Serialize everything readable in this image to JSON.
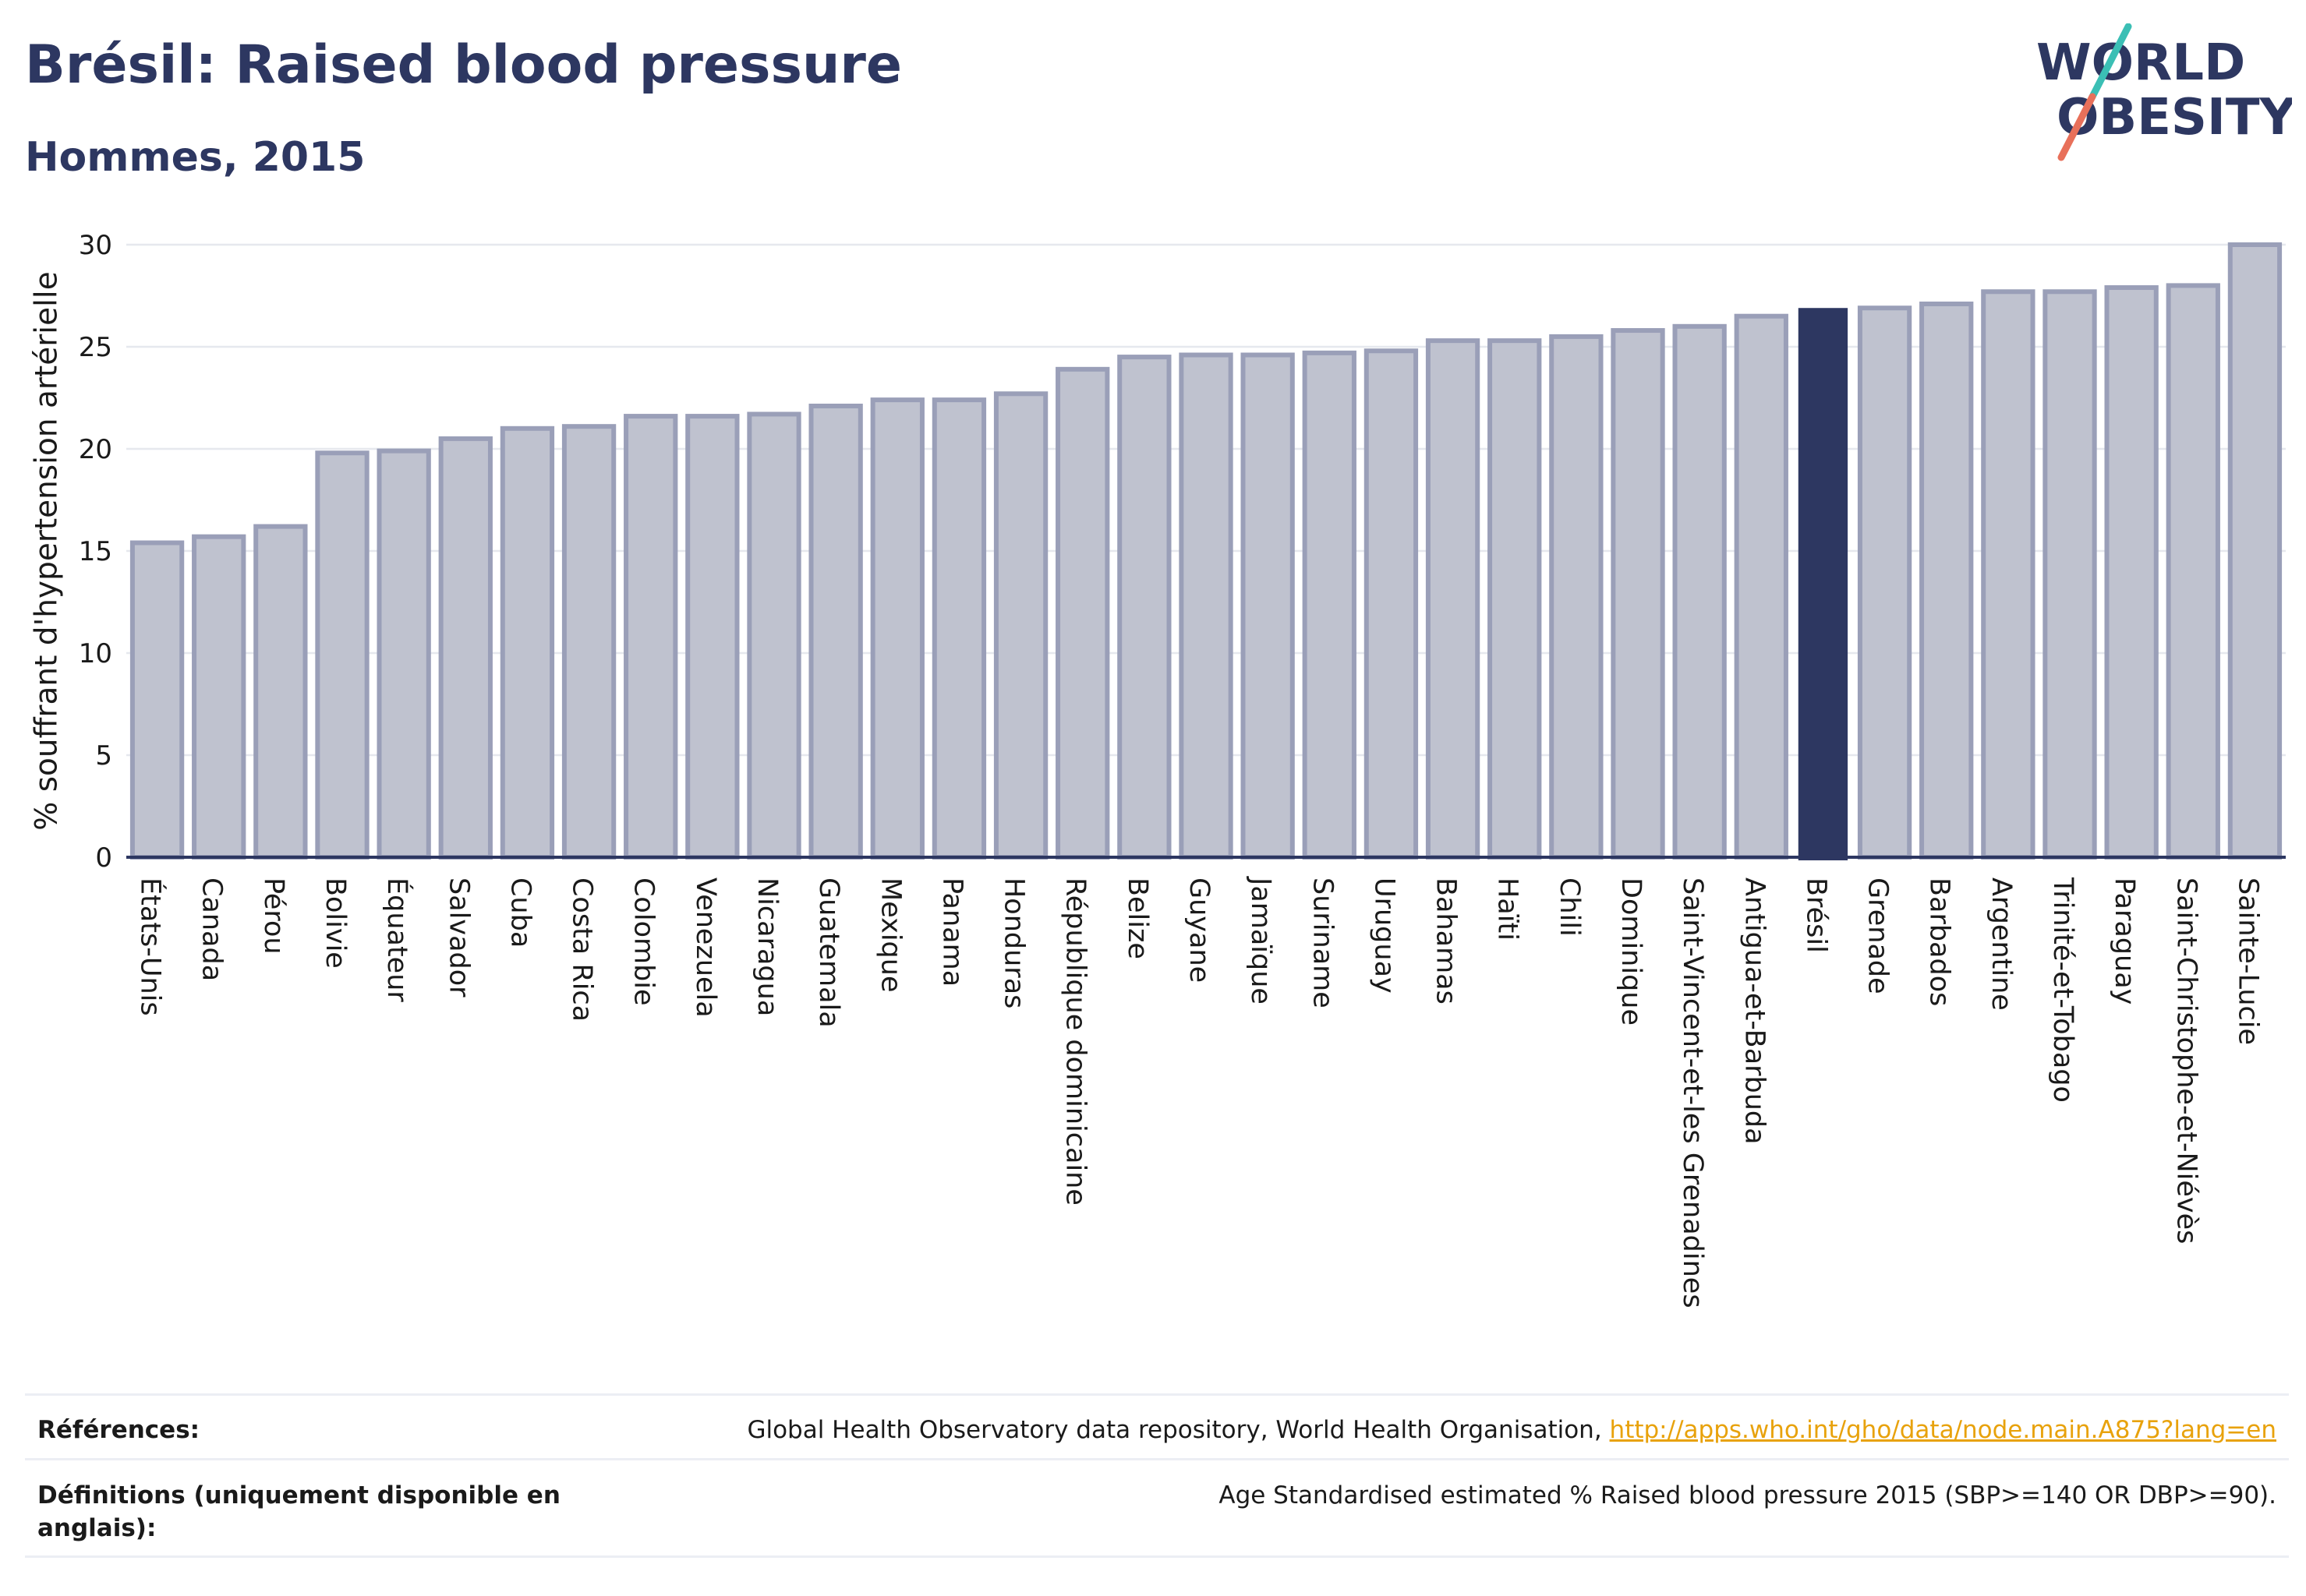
{
  "header": {
    "title": "Brésil: Raised blood pressure",
    "subtitle": "Hommes, 2015"
  },
  "logo": {
    "line1": "WORLD",
    "line2": "OBESITY",
    "colors": {
      "text": "#2d3761",
      "slash_teal": "#3bbfb5",
      "slash_coral": "#e8705a"
    }
  },
  "footer": {
    "references_label": "Références:",
    "references_text": "Global Health Observatory data repository, World Health Organisation, ",
    "references_link": "http://apps.who.int/gho/data/node.main.A875?lang=en",
    "definitions_label": "Définitions (uniquement disponible en anglais):",
    "definitions_text": "Age Standardised estimated % Raised blood pressure 2015 (SBP>=140 OR DBP>=90)."
  },
  "colors": {
    "bar": "#bfc2cf",
    "bar_border": "#9a9fb8",
    "highlight": "#2d3761",
    "grid": "#e6e8ee",
    "axis": "#2d3761"
  },
  "chart_data": {
    "type": "bar",
    "title": "Brésil: Raised blood pressure",
    "subtitle": "Hommes, 2015",
    "xlabel": "",
    "ylabel": "% souffrant d'hypertension artérielle",
    "ylim": [
      0,
      30
    ],
    "yticks": [
      0,
      5,
      10,
      15,
      20,
      25,
      30
    ],
    "grid": true,
    "highlight": "Brésil",
    "categories": [
      "États-Unis",
      "Canada",
      "Pérou",
      "Bolivie",
      "Équateur",
      "Salvador",
      "Cuba",
      "Costa Rica",
      "Colombie",
      "Venezuela",
      "Nicaragua",
      "Guatemala",
      "Mexique",
      "Panama",
      "Honduras",
      "République dominicaine",
      "Belize",
      "Guyane",
      "Jamaïque",
      "Suriname",
      "Uruguay",
      "Bahamas",
      "Haïti",
      "Chili",
      "Dominique",
      "Saint-Vincent-et-les Grenadines",
      "Antigua-et-Barbuda",
      "Brésil",
      "Grenade",
      "Barbados",
      "Argentine",
      "Trinité-et-Tobago",
      "Paraguay",
      "Saint-Christophe-et-Niévès",
      "Sainte-Lucie"
    ],
    "values": [
      15.4,
      15.7,
      16.2,
      19.8,
      19.9,
      20.5,
      21.0,
      21.1,
      21.6,
      21.6,
      21.7,
      22.1,
      22.4,
      22.4,
      22.7,
      23.9,
      24.5,
      24.6,
      24.6,
      24.7,
      24.8,
      25.3,
      25.3,
      25.5,
      25.8,
      26.0,
      26.5,
      26.9,
      26.9,
      27.1,
      27.7,
      27.7,
      27.9,
      28.0,
      30.0
    ]
  }
}
